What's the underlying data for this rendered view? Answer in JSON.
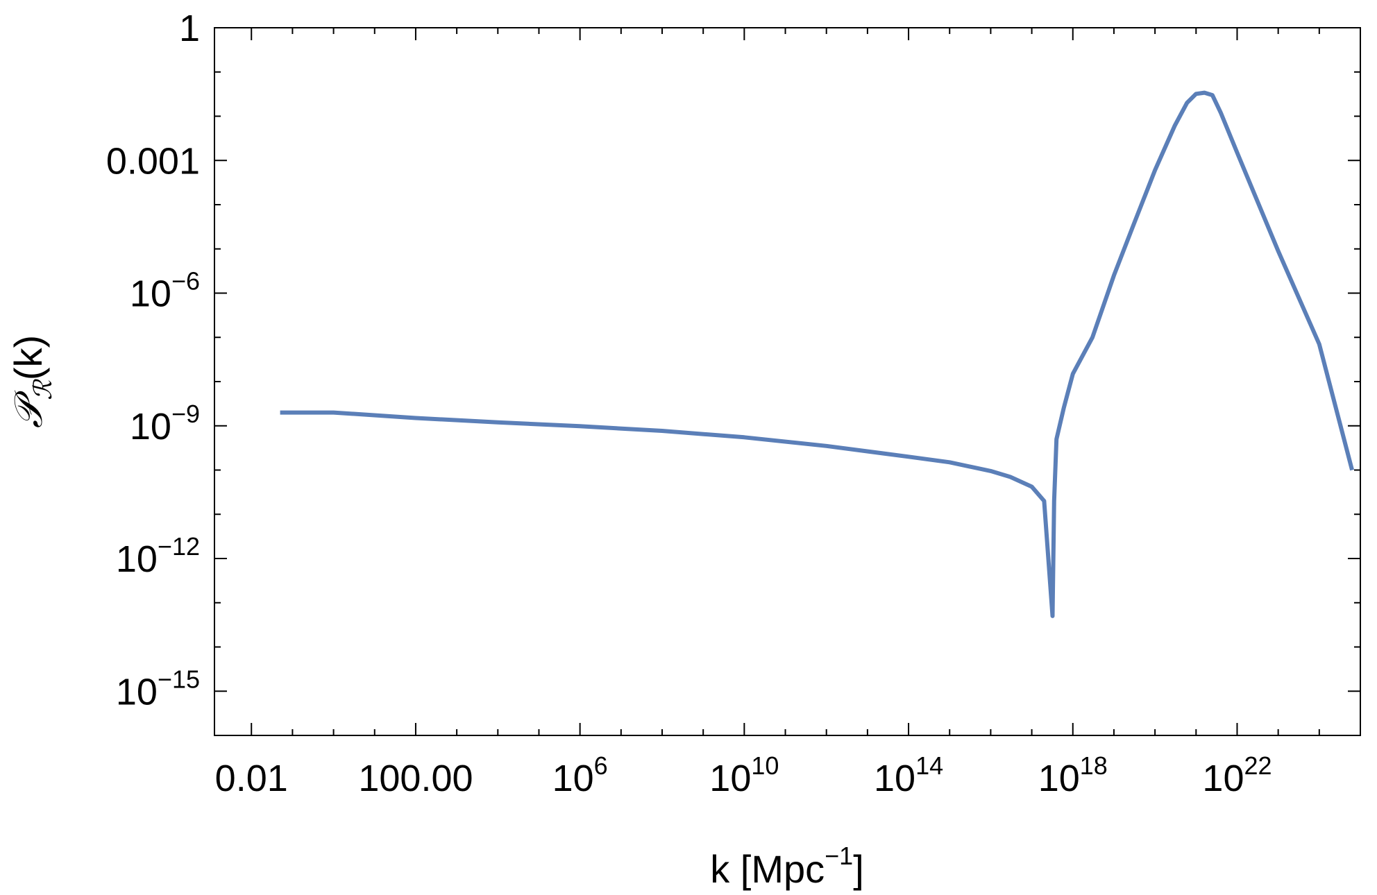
{
  "chart_data": {
    "type": "line",
    "title": "",
    "xlabel": {
      "base": "k [Mpc",
      "sup": "−1",
      "end": "]"
    },
    "ylabel": {
      "script": "𝒫",
      "sub": "ℛ",
      "rest": "(k)"
    },
    "x_scale": "log",
    "y_scale": "log",
    "xlim": [
      0.00126,
      1e+25
    ],
    "ylim": [
      1e-16,
      1
    ],
    "grid": false,
    "legend": "none",
    "x_ticks": [
      {
        "value": 0.01,
        "base": "0.01",
        "sup": ""
      },
      {
        "value": 100,
        "base": "100.00",
        "sup": ""
      },
      {
        "value": 1000000.0,
        "base": "10",
        "sup": "6"
      },
      {
        "value": 10000000000.0,
        "base": "10",
        "sup": "10"
      },
      {
        "value": 100000000000000.0,
        "base": "10",
        "sup": "14"
      },
      {
        "value": 1e+18,
        "base": "10",
        "sup": "18"
      },
      {
        "value": 1e+22,
        "base": "10",
        "sup": "22"
      }
    ],
    "y_ticks": [
      {
        "value": 1,
        "base": "1",
        "sup": ""
      },
      {
        "value": 0.001,
        "base": "0.001",
        "sup": ""
      },
      {
        "value": 1e-06,
        "base": "10",
        "sup": "−6"
      },
      {
        "value": 1e-09,
        "base": "10",
        "sup": "−9"
      },
      {
        "value": 1e-12,
        "base": "10",
        "sup": "−12"
      },
      {
        "value": 1e-15,
        "base": "10",
        "sup": "−15"
      }
    ],
    "series": [
      {
        "color": "#5b7fb8",
        "points": [
          [
            0.05,
            2e-09
          ],
          [
            1.0,
            2e-09
          ],
          [
            100.0,
            1.5e-09
          ],
          [
            10000.0,
            1.2e-09
          ],
          [
            1000000.0,
            9.8e-10
          ],
          [
            100000000.0,
            7.7e-10
          ],
          [
            10000000000.0,
            5.5e-10
          ],
          [
            1000000000000.0,
            3.5e-10
          ],
          [
            100000000000000.0,
            2e-10
          ],
          [
            1000000000000000.0,
            1.5e-10
          ],
          [
            1e+16,
            9.5e-11
          ],
          [
            3e+16,
            7e-11
          ],
          [
            1e+17,
            4.2e-11
          ],
          [
            2e+17,
            2e-11
          ],
          [
            3.2e+17,
            5e-14
          ],
          [
            3.5e+17,
            2e-11
          ],
          [
            4e+17,
            5e-10
          ],
          [
            6e+17,
            2.5e-09
          ],
          [
            1e+18,
            1.5e-08
          ],
          [
            3e+18,
            1e-07
          ],
          [
            1e+19,
            2.5e-06
          ],
          [
            3e+19,
            3.5e-05
          ],
          [
            1e+20,
            0.0006
          ],
          [
            3e+20,
            0.006
          ],
          [
            6e+20,
            0.02
          ],
          [
            1e+21,
            0.032
          ],
          [
            1.6e+21,
            0.034
          ],
          [
            2.5e+21,
            0.03
          ],
          [
            4e+21,
            0.012
          ],
          [
            1e+22,
            0.0015
          ],
          [
            1e+23,
            9e-06
          ],
          [
            1e+24,
            7e-08
          ],
          [
            6.3e+24,
            1e-10
          ]
        ]
      }
    ]
  }
}
